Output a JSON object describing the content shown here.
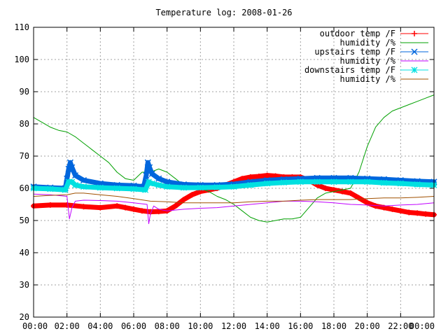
{
  "chart_data": {
    "type": "line",
    "title": "Temperature log: 2008-01-26",
    "xlabel": "",
    "ylabel": "",
    "xlim": [
      0,
      24
    ],
    "ylim": [
      20,
      110
    ],
    "grid": true,
    "legend_position": "top-right",
    "x_ticks": [
      {
        "x": 0,
        "label": "00:00"
      },
      {
        "x": 2,
        "label": "02:00"
      },
      {
        "x": 4,
        "label": "04:00"
      },
      {
        "x": 6,
        "label": "06:00"
      },
      {
        "x": 8,
        "label": "08:00"
      },
      {
        "x": 10,
        "label": "10:00"
      },
      {
        "x": 12,
        "label": "12:00"
      },
      {
        "x": 14,
        "label": "14:00"
      },
      {
        "x": 16,
        "label": "16:00"
      },
      {
        "x": 18,
        "label": "18:00"
      },
      {
        "x": 20,
        "label": "20:00"
      },
      {
        "x": 22,
        "label": "22:00"
      },
      {
        "x": 24,
        "label": "00:00"
      }
    ],
    "y_ticks": [
      20,
      30,
      40,
      50,
      60,
      70,
      80,
      90,
      100,
      110
    ],
    "series": [
      {
        "name": "outdoor temp /F",
        "color": "#ff0000",
        "marker": "plus",
        "style": "thick",
        "x": [
          0,
          1,
          2,
          3,
          4,
          5,
          5.5,
          6,
          6.5,
          7,
          7.5,
          8,
          8.5,
          9,
          9.5,
          10,
          10.5,
          11,
          11.5,
          12,
          12.5,
          13,
          13.5,
          14,
          14.5,
          15,
          15.5,
          16,
          16.5,
          17,
          17.5,
          18,
          18.5,
          19,
          19.5,
          20,
          20.5,
          21,
          21.5,
          22,
          22.5,
          23,
          23.5,
          24
        ],
        "y": [
          54.5,
          54.8,
          54.8,
          54.3,
          54.0,
          54.5,
          54.0,
          53.5,
          53.0,
          52.7,
          52.8,
          53.0,
          54.5,
          56.5,
          58.0,
          59.0,
          59.5,
          60.0,
          61.0,
          62.0,
          63.0,
          63.5,
          63.7,
          64.0,
          63.8,
          63.5,
          63.5,
          63.5,
          62.5,
          61.0,
          60.0,
          59.5,
          59.0,
          58.5,
          57.0,
          55.5,
          54.5,
          54.0,
          53.5,
          53.0,
          52.5,
          52.3,
          52.0,
          51.8
        ]
      },
      {
        "name": "humidity /%",
        "color": "#00a000",
        "marker": "none",
        "style": "thin",
        "x": [
          0,
          0.5,
          1,
          1.5,
          2,
          2.5,
          3,
          3.5,
          4,
          4.5,
          5,
          5.5,
          6,
          6.5,
          7,
          7.5,
          8,
          8.5,
          9,
          9.5,
          10,
          10.5,
          11,
          11.5,
          12,
          12.5,
          13,
          13.5,
          14,
          14.5,
          15,
          15.5,
          16,
          16.5,
          17,
          17.5,
          18,
          18.5,
          19,
          19.5,
          20,
          20.5,
          21,
          21.5,
          22,
          22.5,
          23,
          23.5,
          24
        ],
        "y": [
          82,
          80.5,
          79,
          78,
          77.5,
          76,
          74,
          72,
          70,
          68,
          65,
          63,
          62.5,
          65,
          65,
          66,
          65,
          63,
          61,
          60,
          60,
          59,
          57.5,
          56.5,
          55,
          53,
          51,
          50,
          49.5,
          50,
          50.5,
          50.5,
          51,
          54,
          57,
          58.5,
          59,
          59.5,
          60,
          65,
          73,
          79,
          82,
          84,
          85,
          86,
          87,
          88,
          89
        ]
      },
      {
        "name": "upstairs temp /F",
        "color": "#0066dd",
        "marker": "x",
        "style": "thick",
        "x": [
          0,
          1,
          1.9,
          2.0,
          2.1,
          2.2,
          2.3,
          2.5,
          3,
          4,
          5,
          6,
          6.6,
          6.75,
          6.85,
          6.95,
          7.1,
          7.5,
          8,
          9,
          10,
          11,
          12,
          13,
          14,
          15,
          16,
          17,
          18,
          19,
          20,
          21,
          22,
          23,
          24
        ],
        "y": [
          60.5,
          60.2,
          60.0,
          63.0,
          66.0,
          68.0,
          66.5,
          64.0,
          62.5,
          61.5,
          61.0,
          60.8,
          60.5,
          64.0,
          68.0,
          66.5,
          64.5,
          63.0,
          62.0,
          61.2,
          61.0,
          61.0,
          61.3,
          62.0,
          62.5,
          62.8,
          63.0,
          63.2,
          63.2,
          63.2,
          63.0,
          62.8,
          62.5,
          62.2,
          62.0
        ]
      },
      {
        "name": "humidity /%",
        "color": "#c000ff",
        "marker": "none",
        "style": "thin",
        "x": [
          0,
          1,
          2,
          2.05,
          2.15,
          2.3,
          2.5,
          3,
          4,
          5,
          6,
          6.8,
          6.9,
          7.0,
          7.2,
          7.5,
          8,
          9,
          10,
          11,
          12,
          13,
          14,
          15,
          16,
          17,
          18,
          19,
          20,
          21,
          22,
          23,
          24
        ],
        "y": [
          58.2,
          58.0,
          57.5,
          55.0,
          50.5,
          54.0,
          56.0,
          56.3,
          56.2,
          56.0,
          55.5,
          55.0,
          49.0,
          52.0,
          54.5,
          53.5,
          53.0,
          53.5,
          53.8,
          54.0,
          54.5,
          55.0,
          55.5,
          56.0,
          56.0,
          55.8,
          55.5,
          55.0,
          54.8,
          54.5,
          54.8,
          55.0,
          55.5
        ]
      },
      {
        "name": "downstairs temp /F",
        "color": "#00e0e0",
        "marker": "star",
        "style": "thick",
        "x": [
          0,
          1,
          1.9,
          2.1,
          2.3,
          2.5,
          3,
          4,
          5,
          6,
          6.7,
          6.9,
          7.1,
          7.5,
          8,
          9,
          10,
          11,
          12,
          13,
          14,
          15,
          16,
          17,
          18,
          19,
          20,
          21,
          22,
          23,
          24
        ],
        "y": [
          60.0,
          59.8,
          59.5,
          62.0,
          62.0,
          61.0,
          60.5,
          60.2,
          60.0,
          59.8,
          59.5,
          62.0,
          61.5,
          61.0,
          60.5,
          60.2,
          60.2,
          60.3,
          60.5,
          61.0,
          61.5,
          61.8,
          62.0,
          62.0,
          62.0,
          62.0,
          62.0,
          61.7,
          61.5,
          61.2,
          61.0
        ]
      },
      {
        "name": "humidity /%",
        "color": "#a05000",
        "marker": "none",
        "style": "thin",
        "x": [
          0,
          1,
          2,
          2.5,
          3,
          4,
          5,
          6,
          7,
          8,
          9,
          10,
          11,
          12,
          13,
          14,
          15,
          16,
          17,
          18,
          19,
          20,
          21,
          22,
          23,
          24
        ],
        "y": [
          57.5,
          57.8,
          58.0,
          58.5,
          58.5,
          58.0,
          57.5,
          56.8,
          56.0,
          55.8,
          55.5,
          55.5,
          55.5,
          55.5,
          55.8,
          56.0,
          56.0,
          56.3,
          56.5,
          56.5,
          56.5,
          56.8,
          57.0,
          57.0,
          57.2,
          57.5
        ]
      }
    ]
  }
}
